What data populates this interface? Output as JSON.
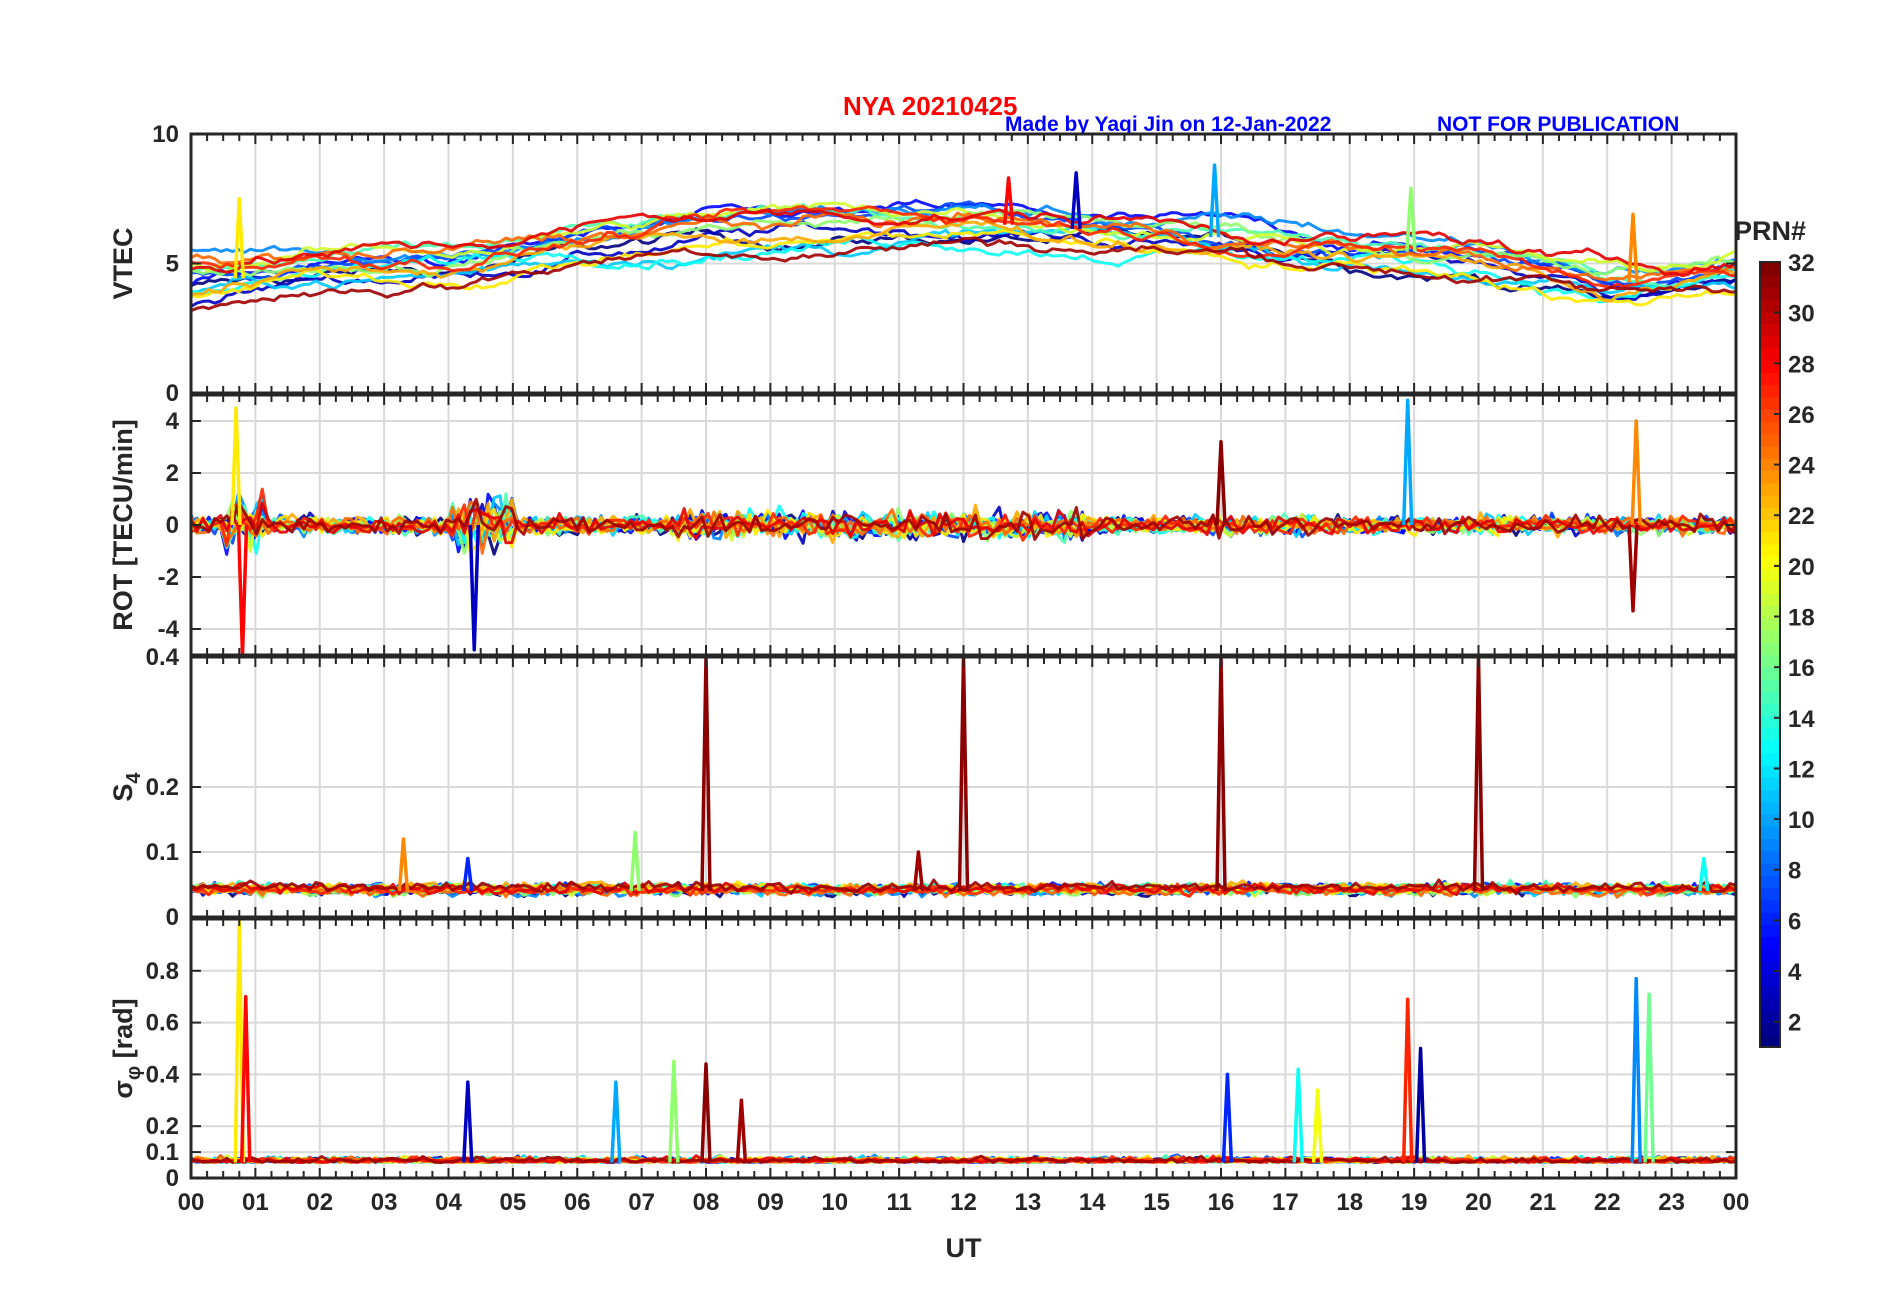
{
  "header": {
    "title": "NYA   20210425",
    "credit": "Made by Yaqi Jin on 12-Jan-2022",
    "notice": "NOT FOR PUBLICATION"
  },
  "colors": {
    "title": "#ff0000",
    "credit": "#0000ff",
    "axis": "#262626",
    "grid": "#d9d9d9"
  },
  "chart_data": [
    {
      "type": "line",
      "title": "",
      "ylabel": "VTEC",
      "ylim": [
        0,
        10
      ],
      "yticks": [
        "0",
        "5",
        "10"
      ],
      "series_note": "multi-satellite time series colored by PRN",
      "events": [
        [
          0.75,
          7.5
        ],
        [
          12.7,
          8.3
        ],
        [
          13.75,
          8.5
        ],
        [
          15.9,
          8.8
        ],
        [
          18.95,
          7.9
        ],
        [
          22.4,
          6.9
        ]
      ],
      "baseline": [
        [
          0,
          4.2
        ],
        [
          2,
          4.8
        ],
        [
          4,
          5.0
        ],
        [
          6,
          5.8
        ],
        [
          8,
          6.3
        ],
        [
          10,
          6.4
        ],
        [
          12,
          6.6
        ],
        [
          14,
          6.3
        ],
        [
          16,
          6.0
        ],
        [
          18,
          5.6
        ],
        [
          20,
          5.3
        ],
        [
          21,
          4.8
        ],
        [
          22,
          4.2
        ],
        [
          23,
          4.4
        ],
        [
          24,
          4.8
        ]
      ]
    },
    {
      "type": "line",
      "ylabel": "ROT [TECU/min]",
      "ylim": [
        -5,
        5
      ],
      "yticks": [
        "-4",
        "-2",
        "0",
        "2",
        "4"
      ],
      "events": [
        [
          0.7,
          4.5
        ],
        [
          0.8,
          -5.0
        ],
        [
          4.4,
          -4.8
        ],
        [
          18.9,
          4.8
        ],
        [
          16.0,
          3.2
        ],
        [
          22.45,
          4.0
        ],
        [
          22.4,
          -3.3
        ]
      ]
    },
    {
      "type": "line",
      "ylabel": "S4",
      "ylim": [
        0,
        0.4
      ],
      "yticks": [
        "0",
        "0.1",
        "0.2",
        "0.4"
      ],
      "baseline_value": 0.04,
      "events": [
        [
          8.0,
          0.4
        ],
        [
          12.0,
          0.4
        ],
        [
          16.0,
          0.4
        ],
        [
          20.0,
          0.4
        ],
        [
          6.9,
          0.13
        ],
        [
          3.3,
          0.12
        ],
        [
          11.3,
          0.1
        ],
        [
          4.3,
          0.09
        ],
        [
          23.5,
          0.09
        ]
      ]
    },
    {
      "type": "line",
      "ylabel": "σφ [rad]",
      "ylim": [
        0,
        1
      ],
      "yticks": [
        "0",
        "0.1",
        "0.2",
        "0.4",
        "0.6",
        "0.8"
      ],
      "baseline_value": 0.06,
      "events": [
        [
          0.75,
          1.0
        ],
        [
          0.85,
          0.7
        ],
        [
          4.3,
          0.37
        ],
        [
          6.6,
          0.37
        ],
        [
          7.5,
          0.45
        ],
        [
          8.0,
          0.44
        ],
        [
          8.55,
          0.3
        ],
        [
          16.1,
          0.4
        ],
        [
          17.2,
          0.42
        ],
        [
          17.5,
          0.34
        ],
        [
          18.9,
          0.69
        ],
        [
          19.1,
          0.5
        ],
        [
          22.45,
          0.77
        ],
        [
          22.65,
          0.71
        ]
      ]
    }
  ],
  "xaxis": {
    "label": "UT",
    "ticks": [
      "00",
      "01",
      "02",
      "03",
      "04",
      "05",
      "06",
      "07",
      "08",
      "09",
      "10",
      "11",
      "12",
      "13",
      "14",
      "15",
      "16",
      "17",
      "18",
      "19",
      "20",
      "21",
      "22",
      "23",
      "00"
    ],
    "range": [
      0,
      24
    ]
  },
  "colorbar": {
    "label": "PRN#",
    "range": [
      1,
      32
    ],
    "ticks": [
      "2",
      "4",
      "6",
      "8",
      "10",
      "12",
      "14",
      "16",
      "18",
      "20",
      "22",
      "24",
      "26",
      "28",
      "30",
      "32"
    ]
  }
}
